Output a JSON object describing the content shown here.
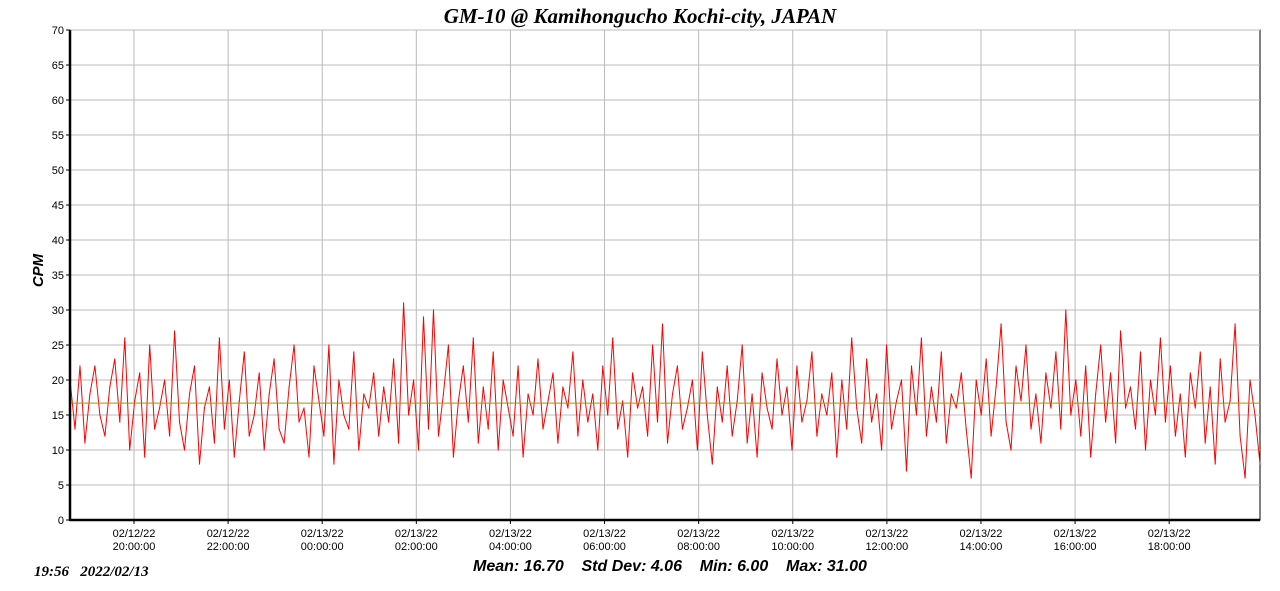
{
  "chart_data": {
    "type": "line",
    "title": "GM-10 @ Kamihongucho Kochi-city, JAPAN",
    "ylabel": "CPM",
    "xlabel": "",
    "ylim": [
      0,
      70
    ],
    "ytick_step": 5,
    "grid": true,
    "x_start_hours": -1.36,
    "x_end_hours": 23.93,
    "xticks": [
      {
        "hours": 0,
        "date": "02/12/22",
        "time": "20:00:00"
      },
      {
        "hours": 2,
        "date": "02/12/22",
        "time": "22:00:00"
      },
      {
        "hours": 4,
        "date": "02/13/22",
        "time": "00:00:00"
      },
      {
        "hours": 6,
        "date": "02/13/22",
        "time": "02:00:00"
      },
      {
        "hours": 8,
        "date": "02/13/22",
        "time": "04:00:00"
      },
      {
        "hours": 10,
        "date": "02/13/22",
        "time": "06:00:00"
      },
      {
        "hours": 12,
        "date": "02/13/22",
        "time": "08:00:00"
      },
      {
        "hours": 14,
        "date": "02/13/22",
        "time": "10:00:00"
      },
      {
        "hours": 16,
        "date": "02/13/22",
        "time": "12:00:00"
      },
      {
        "hours": 18,
        "date": "02/13/22",
        "time": "14:00:00"
      },
      {
        "hours": 20,
        "date": "02/13/22",
        "time": "16:00:00"
      },
      {
        "hours": 22,
        "date": "02/13/22",
        "time": "18:00:00"
      }
    ],
    "series": [
      {
        "name": "CPM",
        "color": "#ff0000",
        "values": [
          20,
          13,
          22,
          11,
          18,
          22,
          15,
          12,
          19,
          23,
          14,
          26,
          10,
          17,
          21,
          9,
          25,
          13,
          16,
          20,
          12,
          27,
          14,
          10,
          18,
          22,
          8,
          16,
          19,
          11,
          26,
          13,
          20,
          9,
          17,
          24,
          12,
          15,
          21,
          10,
          18,
          23,
          13,
          11,
          19,
          25,
          14,
          16,
          9,
          22,
          17,
          12,
          25,
          8,
          20,
          15,
          13,
          24,
          10,
          18,
          16,
          21,
          12,
          19,
          14,
          23,
          11,
          31,
          15,
          20,
          10,
          29,
          13,
          30,
          12,
          18,
          25,
          9,
          17,
          22,
          14,
          26,
          11,
          19,
          13,
          24,
          10,
          20,
          16,
          12,
          22,
          9,
          18,
          15,
          23,
          13,
          17,
          21,
          11,
          19,
          16,
          24,
          12,
          20,
          14,
          18,
          10,
          22,
          15,
          26,
          13,
          17,
          9,
          21,
          16,
          19,
          12,
          25,
          14,
          28,
          11,
          18,
          22,
          13,
          16,
          20,
          10,
          24,
          15,
          8,
          19,
          14,
          22,
          12,
          17,
          25,
          11,
          18,
          9,
          21,
          16,
          13,
          23,
          15,
          19,
          10,
          22,
          14,
          17,
          24,
          12,
          18,
          15,
          21,
          9,
          20,
          13,
          26,
          16,
          11,
          23,
          14,
          18,
          10,
          25,
          13,
          17,
          20,
          7,
          22,
          15,
          26,
          12,
          19,
          14,
          24,
          11,
          18,
          16,
          21,
          13,
          6,
          20,
          15,
          23,
          12,
          19,
          28,
          14,
          10,
          22,
          17,
          25,
          13,
          18,
          11,
          21,
          16,
          24,
          13,
          30,
          15,
          20,
          12,
          22,
          9,
          18,
          25,
          14,
          21,
          11,
          27,
          16,
          19,
          13,
          24,
          10,
          20,
          15,
          26,
          14,
          22,
          12,
          18,
          9,
          21,
          16,
          24,
          11,
          19,
          8,
          23,
          14,
          17,
          28,
          12,
          6,
          20,
          15,
          8
        ]
      },
      {
        "name": "Mean",
        "color": "#9a9a00",
        "value": 16.7
      }
    ]
  },
  "stats": {
    "text": "Mean: 16.70    Std Dev: 4.06    Min: 6.00    Max: 31.00"
  },
  "timestamp": "19:56   2022/02/13"
}
